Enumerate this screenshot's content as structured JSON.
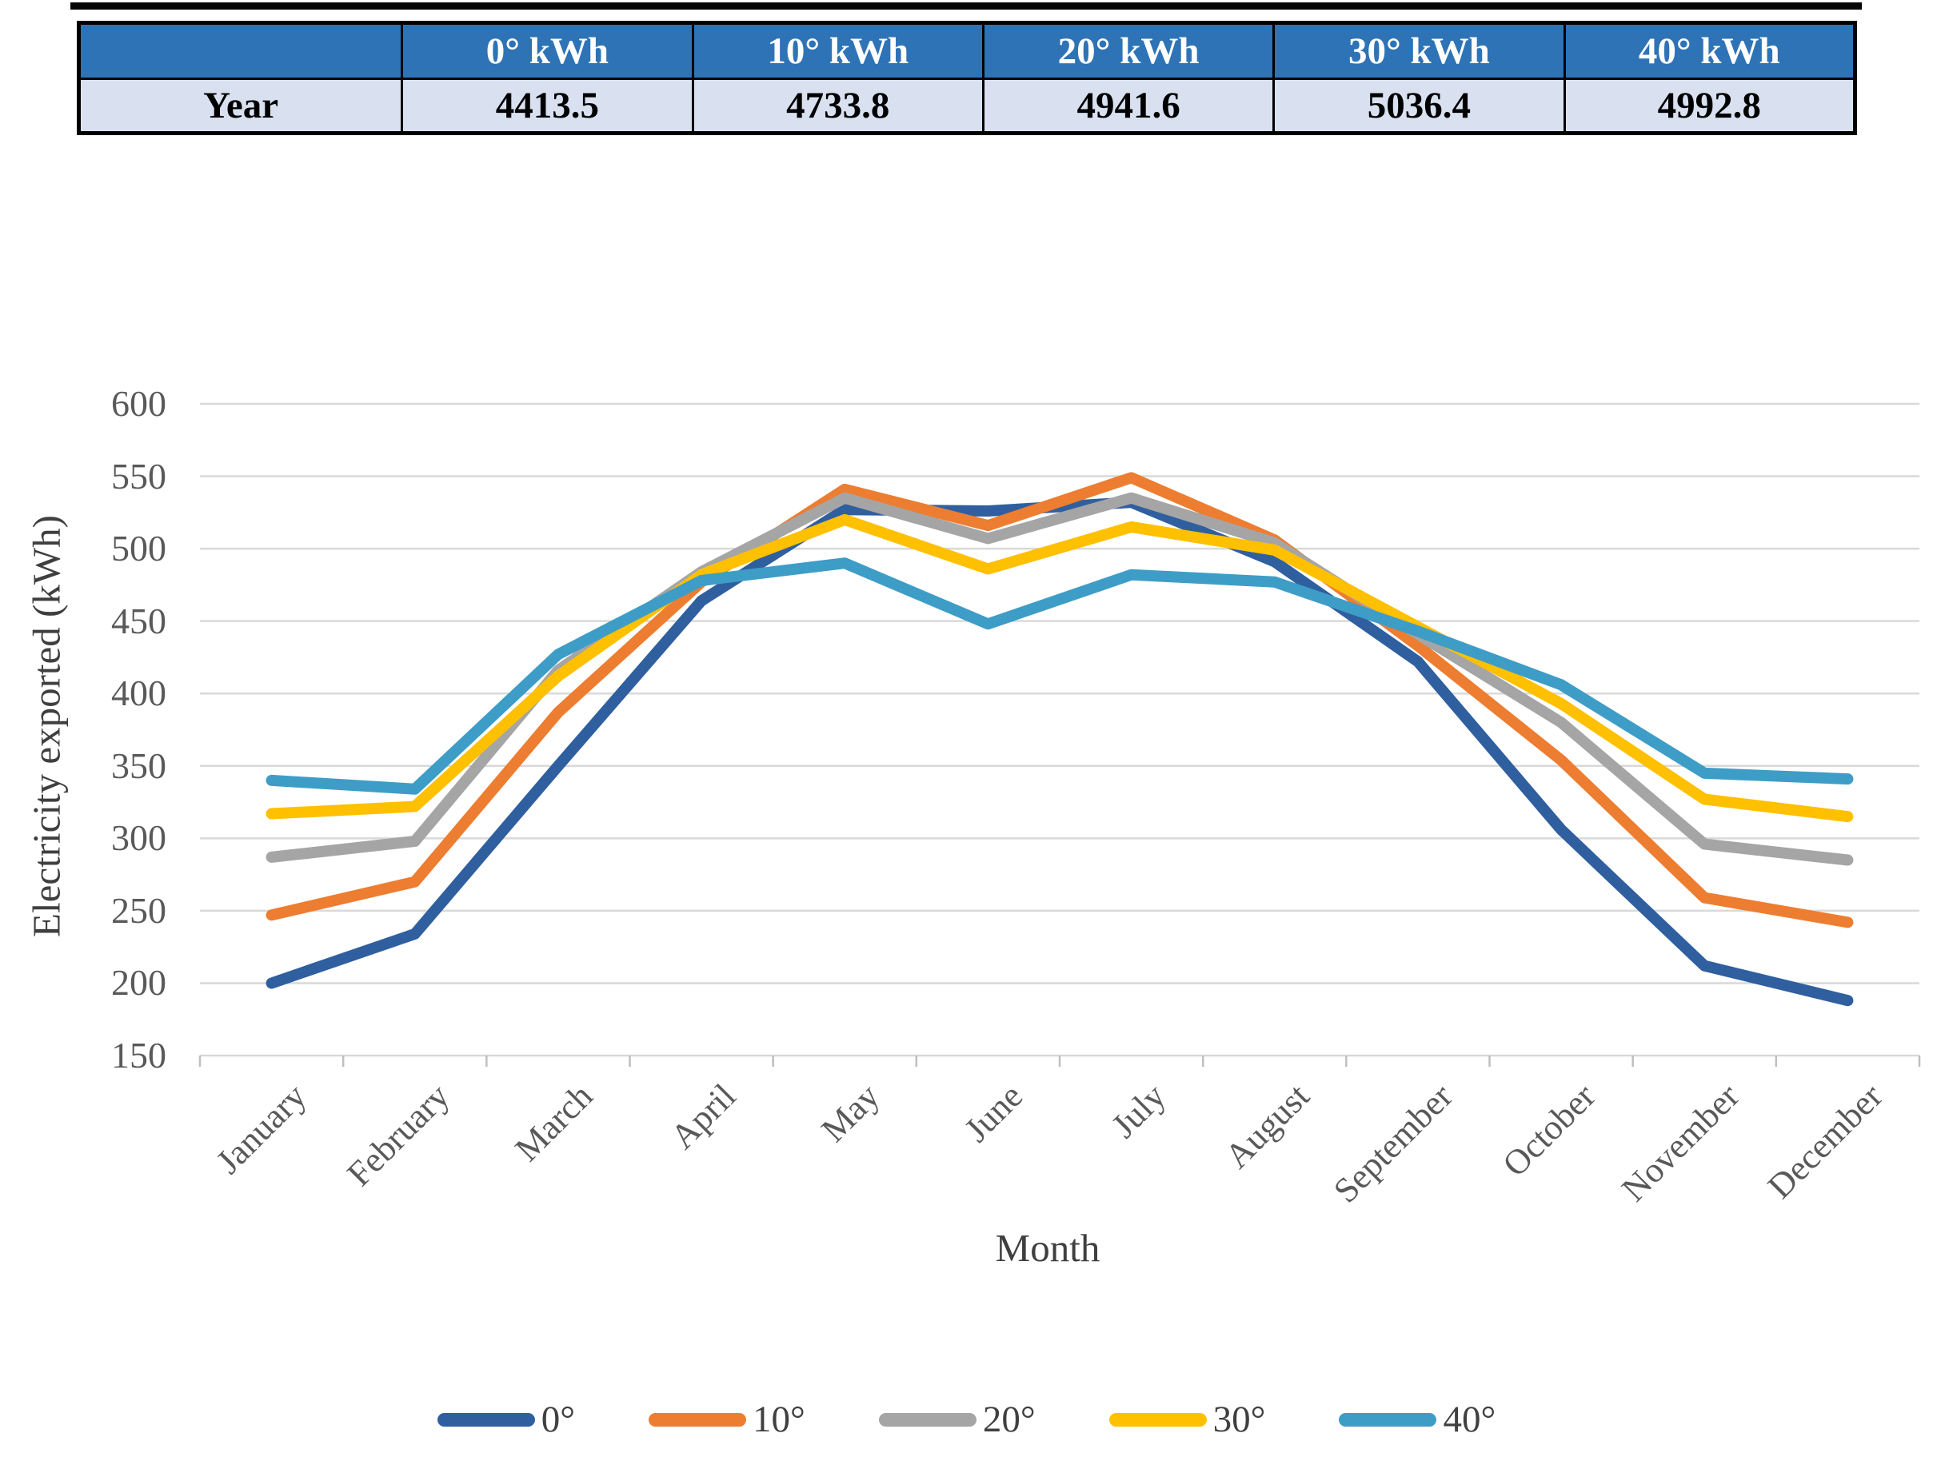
{
  "colors": {
    "table_header_bg": "#2E73B5",
    "table_header_text": "#FFFFFF",
    "table_row_bg": "#D9E1F0",
    "table_border": "#000000",
    "grid_line": "#D9D9D9",
    "axis_tick": "#BFBFBF",
    "axis_text": "#595959",
    "top_strip": "#060606"
  },
  "table": {
    "headers": [
      "",
      "0° kWh",
      "10° kWh",
      "20° kWh",
      "30° kWh",
      "40° kWh"
    ],
    "row_label": "Year",
    "row_values": [
      "4413.5",
      "4733.8",
      "4941.6",
      "5036.4",
      "4992.8"
    ]
  },
  "chart_data": {
    "type": "line",
    "title": "",
    "xlabel": "Month",
    "ylabel": "Electricity exported (kWh)",
    "ylim": [
      150,
      600
    ],
    "yticks": [
      600,
      550,
      500,
      450,
      400,
      350,
      300,
      250,
      200,
      150
    ],
    "grid": "horizontal",
    "legend_position": "bottom",
    "categories": [
      "January",
      "February",
      "March",
      "April",
      "May",
      "June",
      "July",
      "August",
      "September",
      "October",
      "November",
      "December"
    ],
    "series": [
      {
        "name": "0°",
        "color": "#2F5F9F",
        "values": [
          200,
          234,
          350,
          464,
          527,
          526,
          532,
          491,
          422,
          306,
          212,
          188
        ]
      },
      {
        "name": "10°",
        "color": "#ED7D31",
        "values": [
          247,
          270,
          387,
          477,
          541,
          516,
          549,
          506,
          433,
          354,
          259,
          242
        ]
      },
      {
        "name": "20°",
        "color": "#A5A5A5",
        "values": [
          287,
          298,
          416,
          484,
          535,
          507,
          535,
          504,
          441,
          380,
          296,
          285
        ]
      },
      {
        "name": "30°",
        "color": "#FFC000",
        "values": [
          317,
          322,
          412,
          482,
          520,
          486,
          515,
          499,
          446,
          393,
          327,
          315
        ]
      },
      {
        "name": "40°",
        "color": "#3E9DC6",
        "values": [
          340,
          334,
          427,
          478,
          490,
          448,
          482,
          477,
          443,
          406,
          345,
          341
        ]
      }
    ],
    "annual_totals_kwh": {
      "0°": 4413.5,
      "10°": 4733.8,
      "20°": 4941.6,
      "30°": 5036.4,
      "40°": 4992.8
    }
  }
}
